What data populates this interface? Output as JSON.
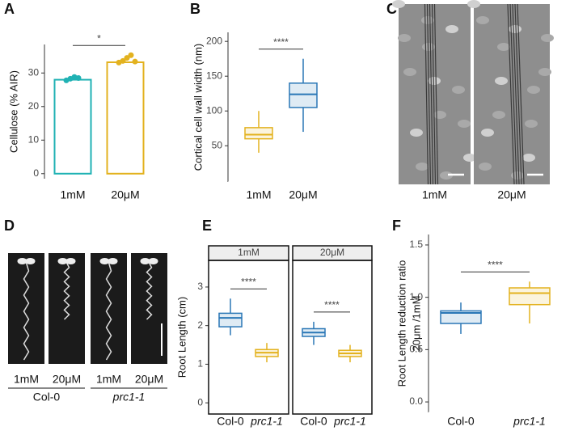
{
  "chart_data": [
    {
      "type": "bar",
      "panel_label": "A",
      "ylabel": "Cellulose (% AIR)",
      "categories": [
        "1mM",
        "20μM"
      ],
      "values": [
        28,
        33.2
      ],
      "colors": [
        "#20b2b4",
        "#e3b21f"
      ],
      "points": [
        [
          27.8,
          28.3,
          28.8,
          28.5
        ],
        [
          33.1,
          33.6,
          34.5,
          35.3,
          33.4
        ]
      ],
      "ylim": [
        -1.5,
        38.5
      ],
      "yticks": [
        0,
        10,
        20,
        30
      ],
      "significance": "*"
    },
    {
      "type": "box",
      "panel_label": "B",
      "ylabel": "Cortical cell wall width (nm)",
      "categories": [
        "1mM",
        "20μM"
      ],
      "colors": [
        "#e3b21f",
        "#2a77b6"
      ],
      "q1": [
        60,
        105
      ],
      "median": [
        66,
        124
      ],
      "q3": [
        76,
        140
      ],
      "whisker_low": [
        40,
        70
      ],
      "whisker_high": [
        100,
        175
      ],
      "ylim": [
        -2,
        213
      ],
      "yticks": [
        50,
        100,
        150,
        200
      ],
      "significance": "****"
    },
    {
      "type": "image",
      "panel_label": "C",
      "captions": [
        "1mM",
        "20μM"
      ]
    },
    {
      "type": "image",
      "panel_label": "D",
      "captions": [
        "1mM",
        "20μM",
        "1mM",
        "20μM"
      ],
      "groups": [
        "Col-0",
        "prc1-1"
      ]
    },
    {
      "type": "box_facet",
      "panel_label": "E",
      "ylabel": "Root Length (cm)",
      "ylim": [
        -0.29,
        3.69
      ],
      "yticks": [
        0,
        1,
        2,
        3
      ],
      "colors": [
        "#2a77b6",
        "#e3b21f"
      ],
      "facets": [
        {
          "title": "1mM",
          "categories": [
            "Col-0",
            "prc1-1"
          ],
          "q1": [
            1.97,
            1.2
          ],
          "median": [
            2.2,
            1.3
          ],
          "q3": [
            2.32,
            1.38
          ],
          "whisker_low": [
            1.75,
            1.05
          ],
          "whisker_high": [
            2.7,
            1.55
          ],
          "significance": "****"
        },
        {
          "title": "20μM",
          "categories": [
            "Col-0",
            "prc1-1"
          ],
          "q1": [
            1.72,
            1.2
          ],
          "median": [
            1.82,
            1.28
          ],
          "q3": [
            1.92,
            1.36
          ],
          "whisker_low": [
            1.5,
            1.05
          ],
          "whisker_high": [
            2.1,
            1.5
          ],
          "significance": "****"
        }
      ]
    },
    {
      "type": "box",
      "panel_label": "F",
      "ylabel": [
        "Root Length reduction ratio",
        "20μm /1mM"
      ],
      "categories": [
        "Col-0",
        "prc1-1"
      ],
      "colors": [
        "#2a77b6",
        "#e3b21f"
      ],
      "q1": [
        0.75,
        0.93
      ],
      "median": [
        0.85,
        1.04
      ],
      "q3": [
        0.87,
        1.09
      ],
      "whisker_low": [
        0.65,
        0.75
      ],
      "whisker_high": [
        0.95,
        1.15
      ],
      "ylim": [
        -0.1,
        1.6
      ],
      "yticks": [
        {
          "value": 0,
          "label": "0.0"
        },
        0.5,
        {
          "value": 1,
          "label": "1.0"
        },
        1.5
      ],
      "significance": "****"
    }
  ]
}
